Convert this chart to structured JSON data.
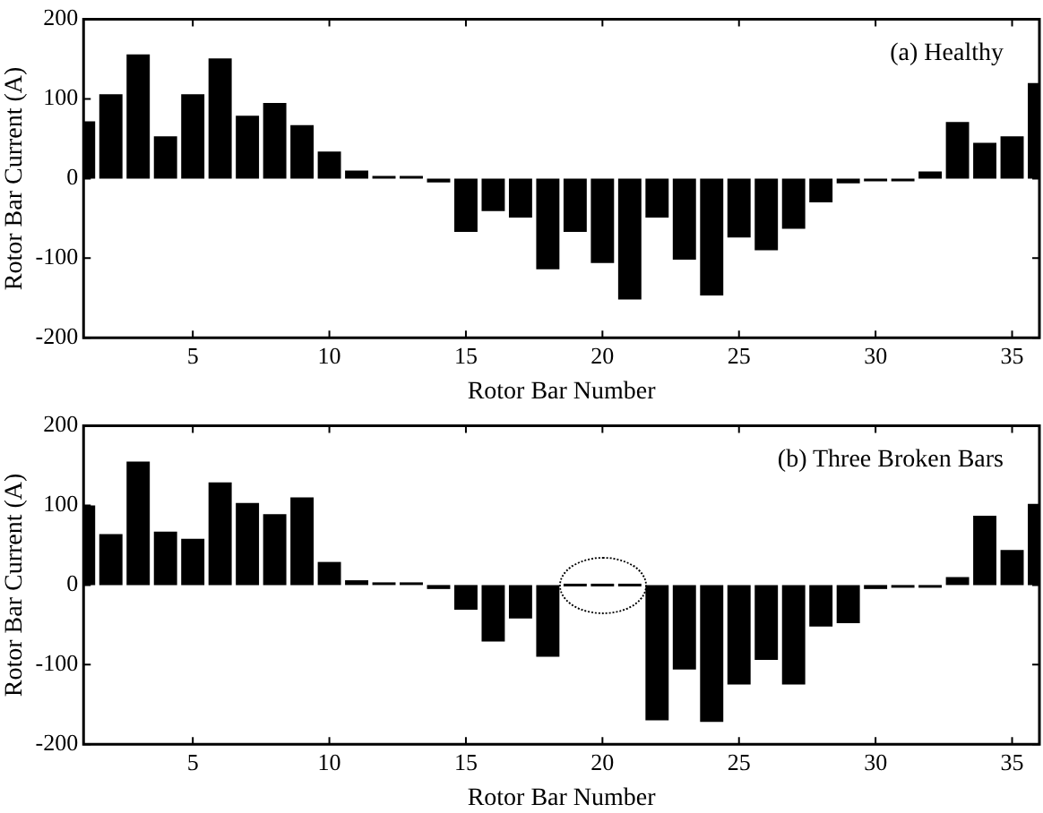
{
  "chart_data": [
    {
      "type": "bar",
      "title": "(a) Healthy",
      "xlabel": "Rotor Bar Number",
      "ylabel": "Rotor Bar Current (A)",
      "color": "#000000",
      "x": [
        1,
        2,
        3,
        4,
        5,
        6,
        7,
        8,
        9,
        10,
        11,
        12,
        13,
        14,
        15,
        16,
        17,
        18,
        19,
        20,
        21,
        22,
        23,
        24,
        25,
        26,
        27,
        28,
        29,
        30,
        31,
        32,
        33,
        34,
        35,
        36
      ],
      "values": [
        72,
        106,
        156,
        53,
        106,
        151,
        79,
        95,
        67,
        34,
        10,
        2,
        2,
        -5,
        -67,
        -41,
        -49,
        -114,
        -67,
        -106,
        -152,
        -49,
        -102,
        -147,
        -74,
        -90,
        -63,
        -30,
        -6,
        -1,
        -1,
        9,
        71,
        45,
        53,
        120
      ],
      "xlim": [
        1,
        36
      ],
      "ylim": [
        -200,
        200
      ],
      "xticks": [
        5,
        10,
        15,
        20,
        25,
        30,
        35
      ],
      "yticks": [
        -200,
        -100,
        0,
        100,
        200
      ]
    },
    {
      "type": "bar",
      "title": "(b) Three Broken Bars",
      "xlabel": "Rotor Bar Number",
      "ylabel": "Rotor Bar Current (A)",
      "color": "#000000",
      "x": [
        1,
        2,
        3,
        4,
        5,
        6,
        7,
        8,
        9,
        10,
        11,
        12,
        13,
        14,
        15,
        16,
        17,
        18,
        19,
        20,
        21,
        22,
        23,
        24,
        25,
        26,
        27,
        28,
        29,
        30,
        31,
        32,
        33,
        34,
        35,
        36
      ],
      "values": [
        100,
        64,
        155,
        67,
        58,
        129,
        103,
        89,
        110,
        29,
        6,
        2,
        1,
        -5,
        -31,
        -71,
        -42,
        -90,
        0,
        0,
        0,
        -170,
        -106,
        -172,
        -125,
        -94,
        -125,
        -52,
        -48,
        -5,
        -1,
        -1,
        10,
        87,
        44,
        102
      ],
      "xlim": [
        1,
        36
      ],
      "ylim": [
        -200,
        200
      ],
      "xticks": [
        5,
        10,
        15,
        20,
        25,
        30,
        35
      ],
      "yticks": [
        -200,
        -100,
        0,
        100,
        200
      ]
    }
  ]
}
